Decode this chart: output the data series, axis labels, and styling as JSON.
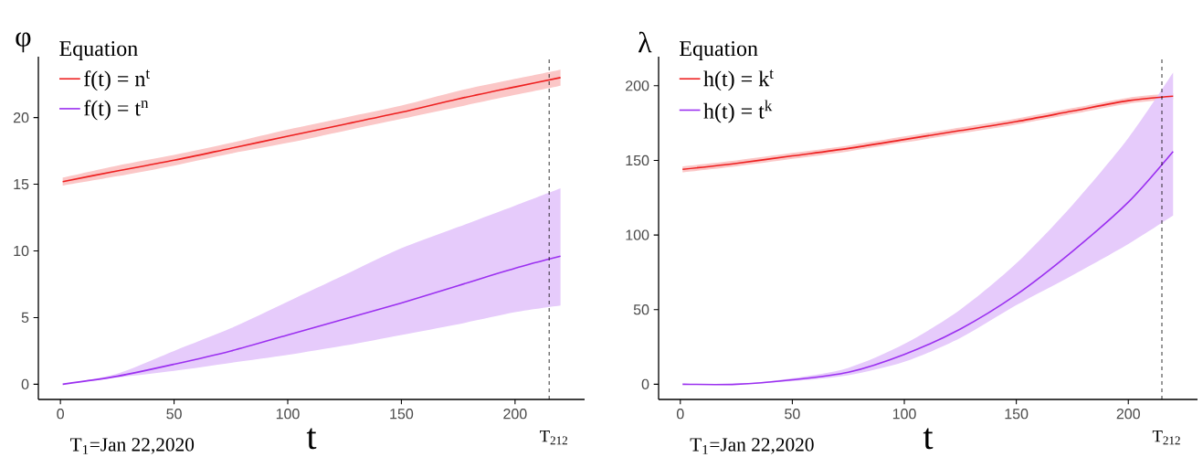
{
  "chart_data": [
    {
      "type": "line",
      "ylabel": "φ",
      "xlabel": "t",
      "legend_title": "Equation",
      "legend": "top left",
      "marker": "none",
      "line_style": "solid",
      "grid": false,
      "x": [
        1,
        25,
        50,
        75,
        100,
        125,
        150,
        175,
        200,
        220
      ],
      "xlim": [
        -9.7,
        230.6
      ],
      "ylim": [
        -1.14,
        24.57
      ],
      "xticks": [
        0,
        50,
        100,
        150,
        200
      ],
      "yticks": [
        0,
        5,
        10,
        15,
        20
      ],
      "series": [
        {
          "name": "f(t) = n$^{t}$",
          "color": "#ee2020",
          "values": [
            15.2,
            16.0,
            16.8,
            17.7,
            18.6,
            19.5,
            20.4,
            21.4,
            22.3,
            23.0
          ],
          "lower": [
            14.9,
            15.6,
            16.4,
            17.3,
            18.1,
            19.0,
            19.9,
            20.8,
            21.7,
            22.4
          ],
          "upper": [
            15.5,
            16.4,
            17.2,
            18.1,
            19.1,
            20.0,
            20.9,
            22.0,
            22.9,
            23.6
          ]
        },
        {
          "name": "f(t) = t$^{n}$",
          "color": "#9b30f0",
          "values": [
            0,
            0.6,
            1.5,
            2.5,
            3.7,
            4.9,
            6.1,
            7.4,
            8.7,
            9.6
          ],
          "lower": [
            0,
            0.5,
            1.0,
            1.6,
            2.2,
            2.9,
            3.7,
            4.5,
            5.4,
            5.9
          ],
          "upper": [
            0,
            0.8,
            2.5,
            4.2,
            6.2,
            8.2,
            10.2,
            11.8,
            13.4,
            14.7
          ]
        }
      ],
      "ref_lines": [
        {
          "axis": "x",
          "value": 215,
          "label": "T$_{212}$",
          "color": "#000000",
          "line_style": "dashed"
        }
      ],
      "annotations": [
        "T$_{1}$=Jan 22,2020"
      ]
    },
    {
      "type": "line",
      "ylabel": "λ",
      "xlabel": "t",
      "legend_title": "Equation",
      "legend": "top left",
      "marker": "none",
      "line_style": "solid",
      "grid": false,
      "x": [
        1,
        25,
        50,
        75,
        100,
        125,
        150,
        175,
        200,
        220
      ],
      "xlim": [
        -9.7,
        230.9
      ],
      "ylim": [
        -10.2,
        219.5
      ],
      "xticks": [
        0,
        50,
        100,
        150,
        200
      ],
      "yticks": [
        0,
        50,
        100,
        150,
        200
      ],
      "series": [
        {
          "name": "h(t) = k$^{t}$",
          "color": "#ee2020",
          "values": [
            144,
            148,
            153,
            158,
            164,
            170,
            176,
            183,
            190,
            193
          ],
          "lower": [
            142,
            146,
            151,
            156,
            162,
            168,
            174,
            181,
            188,
            191
          ],
          "upper": [
            146,
            150,
            155,
            160,
            166,
            172,
            178,
            185,
            192,
            195
          ]
        },
        {
          "name": "h(t) = t$^{k}$",
          "color": "#9b30f0",
          "values": [
            0,
            0,
            3,
            8,
            20,
            37,
            60,
            89,
            122,
            156
          ],
          "lower": [
            0,
            0,
            2,
            6,
            15,
            31,
            53,
            73,
            94,
            113
          ],
          "upper": [
            0,
            0,
            4,
            11,
            27,
            50,
            81,
            120,
            165,
            209
          ]
        }
      ],
      "ref_lines": [
        {
          "axis": "x",
          "value": 215,
          "label": "T$_{212}$",
          "color": "#000000",
          "line_style": "dashed"
        }
      ],
      "annotations": [
        "T$_{1}$=Jan 22,2020"
      ]
    }
  ]
}
